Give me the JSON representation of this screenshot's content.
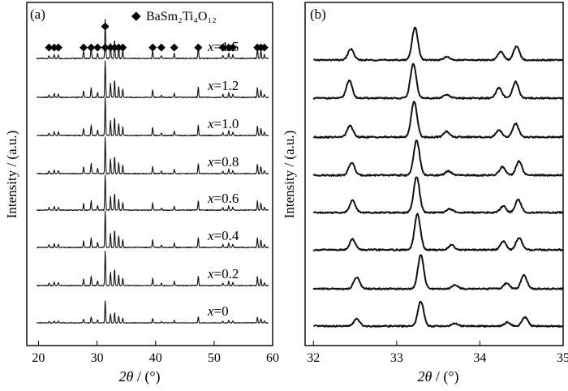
{
  "chart_data": [
    {
      "type": "line",
      "panel_label": "(a)",
      "xlabel_sym": "2θ",
      "xlabel_unit": " / (°)",
      "ylabel": "Intensity / (a.u.)",
      "xlim": [
        18,
        60
      ],
      "xticks": [
        20,
        30,
        40,
        50,
        60
      ],
      "legend": {
        "symbol": "◆",
        "formula": "BaSm₂Ti₄O₁₂"
      },
      "marker_positions": [
        21.8,
        22.7,
        23.4,
        27.7,
        29.0,
        30.1,
        31.4,
        32.3,
        33.0,
        33.7,
        34.4,
        39.5,
        41.0,
        43.2,
        47.3,
        51.5,
        52.5,
        53.2,
        57.4,
        58.0,
        58.6
      ],
      "peaks": [
        [
          21.8,
          0.07
        ],
        [
          22.7,
          0.1
        ],
        [
          23.4,
          0.09
        ],
        [
          27.7,
          0.18
        ],
        [
          29.0,
          0.27
        ],
        [
          30.1,
          0.14
        ],
        [
          31.4,
          1.0
        ],
        [
          32.3,
          0.38
        ],
        [
          33.0,
          0.48
        ],
        [
          33.7,
          0.3
        ],
        [
          34.4,
          0.22
        ],
        [
          39.5,
          0.2
        ],
        [
          41.0,
          0.07
        ],
        [
          43.2,
          0.12
        ],
        [
          47.3,
          0.27
        ],
        [
          51.5,
          0.08
        ],
        [
          52.5,
          0.13
        ],
        [
          53.2,
          0.09
        ],
        [
          57.4,
          0.26
        ],
        [
          58.0,
          0.2
        ],
        [
          58.6,
          0.09
        ]
      ],
      "series": [
        {
          "label_var": "x",
          "label_val": "=1.5"
        },
        {
          "label_var": "x",
          "label_val": "=1.2"
        },
        {
          "label_var": "x",
          "label_val": "=1.0"
        },
        {
          "label_var": "x",
          "label_val": "=0.8"
        },
        {
          "label_var": "x",
          "label_val": "=0.6"
        },
        {
          "label_var": "x",
          "label_val": "=0.4"
        },
        {
          "label_var": "x",
          "label_val": "=0.2"
        },
        {
          "label_var": "x",
          "label_val": "=0"
        }
      ]
    },
    {
      "type": "line",
      "panel_label": "(b)",
      "xlabel_sym": "2θ",
      "xlabel_unit": " / (°)",
      "ylabel": "Intensity / (a.u.)",
      "xlim": [
        31.9,
        35
      ],
      "xticks": [
        32,
        33,
        34,
        35
      ],
      "series": [
        {
          "peaks": [
            [
              32.45,
              0.34
            ],
            [
              33.22,
              1.0
            ],
            [
              33.6,
              0.1
            ],
            [
              34.25,
              0.26
            ],
            [
              34.44,
              0.42
            ]
          ]
        },
        {
          "peaks": [
            [
              32.43,
              0.52
            ],
            [
              33.2,
              1.0
            ],
            [
              33.6,
              0.1
            ],
            [
              34.23,
              0.3
            ],
            [
              34.43,
              0.48
            ]
          ]
        },
        {
          "peaks": [
            [
              32.44,
              0.32
            ],
            [
              33.21,
              1.0
            ],
            [
              33.6,
              0.16
            ],
            [
              34.23,
              0.2
            ],
            [
              34.43,
              0.38
            ]
          ]
        },
        {
          "peaks": [
            [
              32.46,
              0.36
            ],
            [
              33.24,
              1.0
            ],
            [
              33.62,
              0.12
            ],
            [
              34.27,
              0.24
            ],
            [
              34.47,
              0.4
            ]
          ]
        },
        {
          "peaks": [
            [
              32.47,
              0.34
            ],
            [
              33.24,
              1.0
            ],
            [
              33.64,
              0.1
            ],
            [
              34.28,
              0.18
            ],
            [
              34.46,
              0.36
            ]
          ]
        },
        {
          "peaks": [
            [
              32.47,
              0.3
            ],
            [
              33.25,
              1.0
            ],
            [
              33.66,
              0.14
            ],
            [
              34.28,
              0.24
            ],
            [
              34.47,
              0.34
            ]
          ]
        },
        {
          "peaks": [
            [
              32.52,
              0.34
            ],
            [
              33.29,
              1.0
            ],
            [
              33.7,
              0.12
            ],
            [
              34.32,
              0.16
            ],
            [
              34.53,
              0.4
            ]
          ]
        },
        {
          "peaks": [
            [
              32.52,
              0.22
            ],
            [
              33.29,
              0.76
            ],
            [
              33.7,
              0.08
            ],
            [
              34.33,
              0.12
            ],
            [
              34.54,
              0.28
            ]
          ]
        }
      ]
    }
  ]
}
